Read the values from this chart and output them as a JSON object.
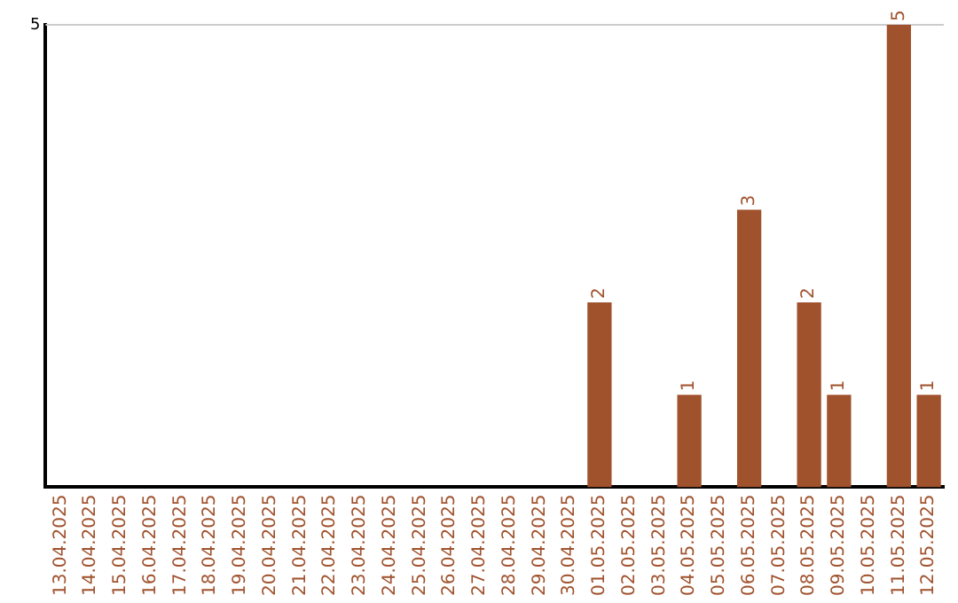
{
  "chart_data": {
    "type": "bar",
    "categories": [
      "13.04.2025",
      "14.04.2025",
      "15.04.2025",
      "16.04.2025",
      "17.04.2025",
      "18.04.2025",
      "19.04.2025",
      "20.04.2025",
      "21.04.2025",
      "22.04.2025",
      "23.04.2025",
      "24.04.2025",
      "25.04.2025",
      "26.04.2025",
      "27.04.2025",
      "28.04.2025",
      "29.04.2025",
      "30.04.2025",
      "01.05.2025",
      "02.05.2025",
      "03.05.2025",
      "04.05.2025",
      "05.05.2025",
      "06.05.2025",
      "07.05.2025",
      "08.05.2025",
      "09.05.2025",
      "10.05.2025",
      "11.05.2025",
      "12.05.2025"
    ],
    "values": [
      null,
      null,
      null,
      null,
      null,
      null,
      null,
      null,
      null,
      null,
      null,
      null,
      null,
      null,
      null,
      null,
      null,
      null,
      2,
      null,
      null,
      1,
      null,
      3,
      null,
      2,
      1,
      null,
      5,
      1
    ],
    "value_labels": [
      null,
      null,
      null,
      null,
      null,
      null,
      null,
      null,
      null,
      null,
      null,
      null,
      null,
      null,
      null,
      null,
      null,
      null,
      "2",
      null,
      null,
      "1",
      null,
      "3",
      null,
      "2",
      "1",
      null,
      "5",
      "1"
    ],
    "ylim": [
      0,
      5
    ],
    "yticks": [
      5
    ],
    "ref_lines": [
      {
        "axis": "y",
        "value": 5,
        "color": "#cccccc"
      }
    ],
    "color": "#a0522d",
    "legend": false
  }
}
